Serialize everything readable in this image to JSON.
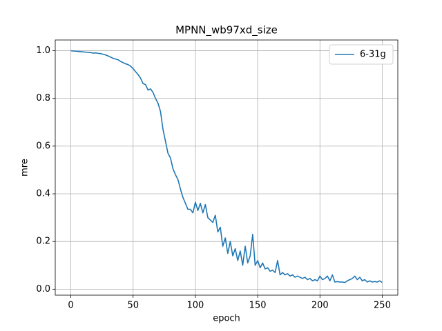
{
  "chart_data": {
    "type": "line",
    "title": "MPNN_wb97xd_size",
    "xlabel": "epoch",
    "ylabel": "mre",
    "x": [
      0,
      2,
      4,
      6,
      8,
      10,
      12,
      14,
      16,
      18,
      20,
      22,
      24,
      26,
      28,
      30,
      32,
      34,
      36,
      38,
      40,
      42,
      44,
      46,
      48,
      50,
      52,
      54,
      56,
      58,
      60,
      62,
      64,
      66,
      68,
      70,
      72,
      74,
      76,
      78,
      80,
      82,
      84,
      86,
      88,
      90,
      92,
      94,
      96,
      98,
      100,
      102,
      104,
      106,
      108,
      110,
      112,
      114,
      116,
      118,
      120,
      122,
      124,
      126,
      128,
      130,
      132,
      134,
      136,
      138,
      140,
      142,
      144,
      146,
      148,
      150,
      152,
      154,
      156,
      158,
      160,
      162,
      164,
      166,
      168,
      170,
      172,
      174,
      176,
      178,
      180,
      182,
      184,
      186,
      188,
      190,
      192,
      194,
      196,
      198,
      200,
      202,
      204,
      206,
      208,
      210,
      212,
      214,
      216,
      218,
      220,
      222,
      224,
      226,
      228,
      230,
      232,
      234,
      236,
      238,
      240,
      242,
      244,
      246,
      248,
      250
    ],
    "series": [
      {
        "name": "6-31g",
        "color": "#1f77b4",
        "values": [
          1.0,
          0.999,
          0.998,
          0.997,
          0.996,
          0.995,
          0.994,
          0.993,
          0.992,
          0.99,
          0.991,
          0.989,
          0.988,
          0.985,
          0.982,
          0.978,
          0.973,
          0.968,
          0.965,
          0.962,
          0.955,
          0.95,
          0.945,
          0.942,
          0.935,
          0.925,
          0.912,
          0.9,
          0.885,
          0.862,
          0.858,
          0.835,
          0.84,
          0.825,
          0.8,
          0.78,
          0.745,
          0.67,
          0.62,
          0.57,
          0.55,
          0.505,
          0.48,
          0.46,
          0.42,
          0.385,
          0.36,
          0.335,
          0.335,
          0.32,
          0.365,
          0.33,
          0.36,
          0.32,
          0.355,
          0.3,
          0.29,
          0.28,
          0.31,
          0.24,
          0.26,
          0.18,
          0.215,
          0.15,
          0.2,
          0.14,
          0.17,
          0.12,
          0.16,
          0.1,
          0.18,
          0.11,
          0.14,
          0.23,
          0.1,
          0.12,
          0.09,
          0.11,
          0.085,
          0.09,
          0.075,
          0.08,
          0.07,
          0.12,
          0.06,
          0.07,
          0.06,
          0.065,
          0.055,
          0.06,
          0.05,
          0.055,
          0.05,
          0.045,
          0.05,
          0.04,
          0.045,
          0.035,
          0.04,
          0.035,
          0.055,
          0.04,
          0.045,
          0.055,
          0.035,
          0.06,
          0.03,
          0.032,
          0.03,
          0.03,
          0.028,
          0.035,
          0.04,
          0.045,
          0.055,
          0.04,
          0.05,
          0.035,
          0.04,
          0.03,
          0.035,
          0.03,
          0.032,
          0.03,
          0.035,
          0.028
        ]
      }
    ],
    "xlim": [
      -12.5,
      262.5
    ],
    "ylim": [
      -0.025,
      1.045
    ],
    "xticks": [
      0,
      50,
      100,
      150,
      200,
      250
    ],
    "yticks": [
      {
        "value": 0,
        "label": "0.0"
      },
      0.2,
      0.4,
      0.6,
      0.8,
      {
        "value": 1,
        "label": "1.0"
      }
    ],
    "grid": true,
    "legend": "upper-right"
  }
}
